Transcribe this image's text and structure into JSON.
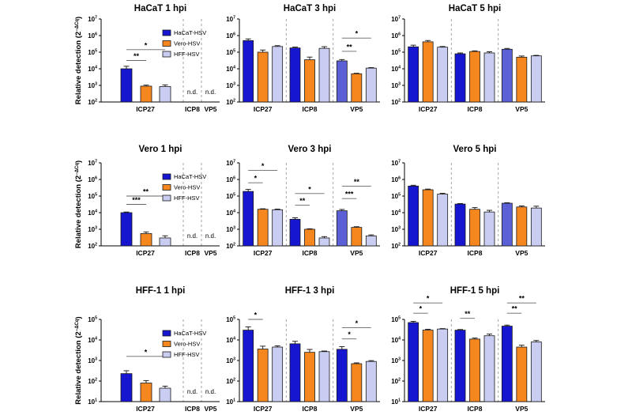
{
  "figure": {
    "ylabel_base": "Relative detection (2",
    "ylabel_sup": "−ΔCq",
    "ylabel_close": ")",
    "nd_label": "n.d.",
    "legend_entries": [
      "HaCaT-HSV",
      "Vero-HSV",
      "HFF-HSV"
    ]
  },
  "colors": {
    "hacat_blue": "#1616d1",
    "hacat_vp5_light_blue": "#5b60d6",
    "vero_orange": "#f6871f",
    "hff_lavender": "#c9cdf1",
    "bar_stroke": "#1a1a1a",
    "separator_gray": "#9a9a9a",
    "sig_line": "#666666",
    "sig_star": "#333333",
    "axis": "#000000"
  },
  "chart_data": [
    {
      "type": "bar",
      "title": "HaCaT 1 hpi",
      "categories": [
        "ICP27",
        "ICP8",
        "VP5"
      ],
      "ylim_exp": [
        2,
        7
      ],
      "show_legend": true,
      "vp5_light_blue": false,
      "nd_groups": [
        1,
        2
      ],
      "series": [
        {
          "name": "HaCaT-HSV",
          "values": [
            10000,
            null,
            null
          ],
          "errs_log": [
            0.15,
            null,
            null
          ]
        },
        {
          "name": "Vero-HSV",
          "values": [
            900,
            null,
            null
          ],
          "errs_log": [
            0.06,
            null,
            null
          ]
        },
        {
          "name": "HFF-HSV",
          "values": [
            850,
            null,
            null
          ],
          "errs_log": [
            0.1,
            null,
            null
          ]
        }
      ],
      "significance": [
        {
          "group": 0,
          "bars": [
            0,
            1
          ],
          "stars": "**",
          "level_exp": 4.5
        },
        {
          "group": 0,
          "bars": [
            0,
            2
          ],
          "stars": "*",
          "level_exp": 5.15
        }
      ]
    },
    {
      "type": "bar",
      "title": "HaCaT 3 hpi",
      "categories": [
        "ICP27",
        "ICP8",
        "VP5"
      ],
      "ylim_exp": [
        2,
        7
      ],
      "show_legend": false,
      "vp5_light_blue": true,
      "nd_groups": [],
      "series": [
        {
          "name": "HaCaT-HSV",
          "values": [
            500000,
            180000,
            30000
          ],
          "errs_log": [
            0.1,
            0.05,
            0.08
          ]
        },
        {
          "name": "Vero-HSV",
          "values": [
            100000,
            35000,
            5000
          ],
          "errs_log": [
            0.13,
            0.16,
            0.03
          ]
        },
        {
          "name": "HFF-HSV",
          "values": [
            220000,
            170000,
            11000
          ],
          "errs_log": [
            0.05,
            0.1,
            0.03
          ]
        }
      ],
      "significance": [
        {
          "group": 2,
          "bars": [
            0,
            1
          ],
          "stars": "**",
          "level_exp": 5.05
        },
        {
          "group": 2,
          "bars": [
            0,
            2
          ],
          "stars": "*",
          "level_exp": 5.85
        }
      ]
    },
    {
      "type": "bar",
      "title": "HaCaT 5 hpi",
      "categories": [
        "ICP27",
        "ICP8",
        "VP5"
      ],
      "ylim_exp": [
        2,
        7
      ],
      "show_legend": false,
      "vp5_light_blue": true,
      "nd_groups": [],
      "series": [
        {
          "name": "HaCaT-HSV",
          "values": [
            210000,
            80000,
            150000
          ],
          "errs_log": [
            0.1,
            0.05,
            0.05
          ]
        },
        {
          "name": "Vero-HSV",
          "values": [
            420000,
            110000,
            50000
          ],
          "errs_log": [
            0.08,
            0.04,
            0.07
          ]
        },
        {
          "name": "HFF-HSV",
          "values": [
            200000,
            90000,
            60000
          ],
          "errs_log": [
            0.04,
            0.07,
            0.03
          ]
        }
      ],
      "significance": []
    },
    {
      "type": "bar",
      "title": "Vero 1 hpi",
      "categories": [
        "ICP27",
        "ICP8",
        "VP5"
      ],
      "ylim_exp": [
        2,
        7
      ],
      "show_legend": true,
      "vp5_light_blue": false,
      "nd_groups": [
        1,
        2
      ],
      "series": [
        {
          "name": "HaCaT-HSV",
          "values": [
            10000,
            null,
            null
          ],
          "errs_log": [
            0.04,
            null,
            null
          ]
        },
        {
          "name": "Vero-HSV",
          "values": [
            550,
            null,
            null
          ],
          "errs_log": [
            0.1,
            null,
            null
          ]
        },
        {
          "name": "HFF-HSV",
          "values": [
            300,
            null,
            null
          ],
          "errs_log": [
            0.13,
            null,
            null
          ]
        }
      ],
      "significance": [
        {
          "group": 0,
          "bars": [
            0,
            1
          ],
          "stars": "***",
          "level_exp": 4.5
        },
        {
          "group": 0,
          "bars": [
            0,
            2
          ],
          "stars": "**",
          "level_exp": 5.0
        }
      ]
    },
    {
      "type": "bar",
      "title": "Vero 3 hpi",
      "categories": [
        "ICP27",
        "ICP8",
        "VP5"
      ],
      "ylim_exp": [
        2,
        7
      ],
      "show_legend": false,
      "vp5_light_blue": true,
      "nd_groups": [],
      "series": [
        {
          "name": "HaCaT-HSV",
          "values": [
            190000,
            4000,
            13000
          ],
          "errs_log": [
            0.12,
            0.09,
            0.08
          ]
        },
        {
          "name": "Vero-HSV",
          "values": [
            16000,
            1000,
            1300
          ],
          "errs_log": [
            0.03,
            0.03,
            0.04
          ]
        },
        {
          "name": "HFF-HSV",
          "values": [
            15000,
            300,
            400
          ],
          "errs_log": [
            0.04,
            0.08,
            0.06
          ]
        }
      ],
      "significance": [
        {
          "group": 0,
          "bars": [
            0,
            1
          ],
          "stars": "*",
          "level_exp": 5.8
        },
        {
          "group": 0,
          "bars": [
            0,
            2
          ],
          "stars": "*",
          "level_exp": 6.55
        },
        {
          "group": 1,
          "bars": [
            0,
            1
          ],
          "stars": "**",
          "level_exp": 4.45
        },
        {
          "group": 1,
          "bars": [
            0,
            2
          ],
          "stars": "*",
          "level_exp": 5.15
        },
        {
          "group": 2,
          "bars": [
            0,
            1
          ],
          "stars": "***",
          "level_exp": 4.85
        },
        {
          "group": 2,
          "bars": [
            0,
            2
          ],
          "stars": "**",
          "level_exp": 5.6
        }
      ]
    },
    {
      "type": "bar",
      "title": "Vero 5 hpi",
      "categories": [
        "ICP27",
        "ICP8",
        "VP5"
      ],
      "ylim_exp": [
        2,
        7
      ],
      "show_legend": false,
      "vp5_light_blue": true,
      "nd_groups": [],
      "series": [
        {
          "name": "HaCaT-HSV",
          "values": [
            400000,
            33000,
            37000
          ],
          "errs_log": [
            0.05,
            0.03,
            0.03
          ]
        },
        {
          "name": "Vero-HSV",
          "values": [
            240000,
            16000,
            22000
          ],
          "errs_log": [
            0.04,
            0.1,
            0.06
          ]
        },
        {
          "name": "HFF-HSV",
          "values": [
            130000,
            11000,
            19000
          ],
          "errs_log": [
            0.05,
            0.1,
            0.11
          ]
        }
      ],
      "significance": []
    },
    {
      "type": "bar",
      "title": "HFF-1 1 hpi",
      "categories": [
        "ICP27",
        "ICP8",
        "VP5"
      ],
      "ylim_exp": [
        1,
        5
      ],
      "show_legend": true,
      "vp5_light_blue": false,
      "nd_groups": [
        1,
        2
      ],
      "series": [
        {
          "name": "HaCaT-HSV",
          "values": [
            230,
            null,
            null
          ],
          "errs_log": [
            0.14,
            null,
            null
          ]
        },
        {
          "name": "Vero-HSV",
          "values": [
            80,
            null,
            null
          ],
          "errs_log": [
            0.12,
            null,
            null
          ]
        },
        {
          "name": "HFF-HSV",
          "values": [
            45,
            null,
            null
          ],
          "errs_log": [
            0.1,
            null,
            null
          ]
        }
      ],
      "significance": [
        {
          "group": 0,
          "bars": [
            0,
            2
          ],
          "stars": "*",
          "level_exp": 3.2
        }
      ]
    },
    {
      "type": "bar",
      "title": "HFF-1 3 hpi",
      "categories": [
        "ICP27",
        "ICP8",
        "VP5"
      ],
      "ylim_exp": [
        1,
        5
      ],
      "show_legend": false,
      "vp5_light_blue": false,
      "nd_groups": [],
      "series": [
        {
          "name": "HaCaT-HSV",
          "values": [
            30000,
            6500,
            3500
          ],
          "errs_log": [
            0.16,
            0.12,
            0.13
          ]
        },
        {
          "name": "Vero-HSV",
          "values": [
            3600,
            2500,
            700
          ],
          "errs_log": [
            0.14,
            0.14,
            0.04
          ]
        },
        {
          "name": "HFF-HSV",
          "values": [
            4500,
            2700,
            900
          ],
          "errs_log": [
            0.06,
            0.03,
            0.04
          ]
        }
      ],
      "significance": [
        {
          "group": 0,
          "bars": [
            0,
            1
          ],
          "stars": "*",
          "level_exp": 5.0
        },
        {
          "group": 2,
          "bars": [
            0,
            1
          ],
          "stars": "*",
          "level_exp": 4.05
        },
        {
          "group": 2,
          "bars": [
            0,
            2
          ],
          "stars": "*",
          "level_exp": 4.6
        }
      ]
    },
    {
      "type": "bar",
      "title": "HFF-1 5 hpi",
      "categories": [
        "ICP27",
        "ICP8",
        "VP5"
      ],
      "ylim_exp": [
        1,
        5
      ],
      "show_legend": false,
      "vp5_light_blue": false,
      "nd_groups": [],
      "series": [
        {
          "name": "HaCaT-HSV",
          "values": [
            70000,
            30000,
            47000
          ],
          "errs_log": [
            0.06,
            0.03,
            0.05
          ]
        },
        {
          "name": "Vero-HSV",
          "values": [
            30000,
            11000,
            4500
          ],
          "errs_log": [
            0.04,
            0.05,
            0.09
          ]
        },
        {
          "name": "HFF-HSV",
          "values": [
            34000,
            16000,
            8000
          ],
          "errs_log": [
            0.02,
            0.08,
            0.07
          ]
        }
      ],
      "significance": [
        {
          "group": 0,
          "bars": [
            0,
            1
          ],
          "stars": "*",
          "level_exp": 5.3
        },
        {
          "group": 0,
          "bars": [
            0,
            2
          ],
          "stars": "*",
          "level_exp": 5.8
        },
        {
          "group": 1,
          "bars": [
            0,
            1
          ],
          "stars": "**",
          "level_exp": 5.05
        },
        {
          "group": 2,
          "bars": [
            0,
            1
          ],
          "stars": "**",
          "level_exp": 5.3
        },
        {
          "group": 2,
          "bars": [
            0,
            2
          ],
          "stars": "**",
          "level_exp": 5.8
        }
      ]
    }
  ]
}
